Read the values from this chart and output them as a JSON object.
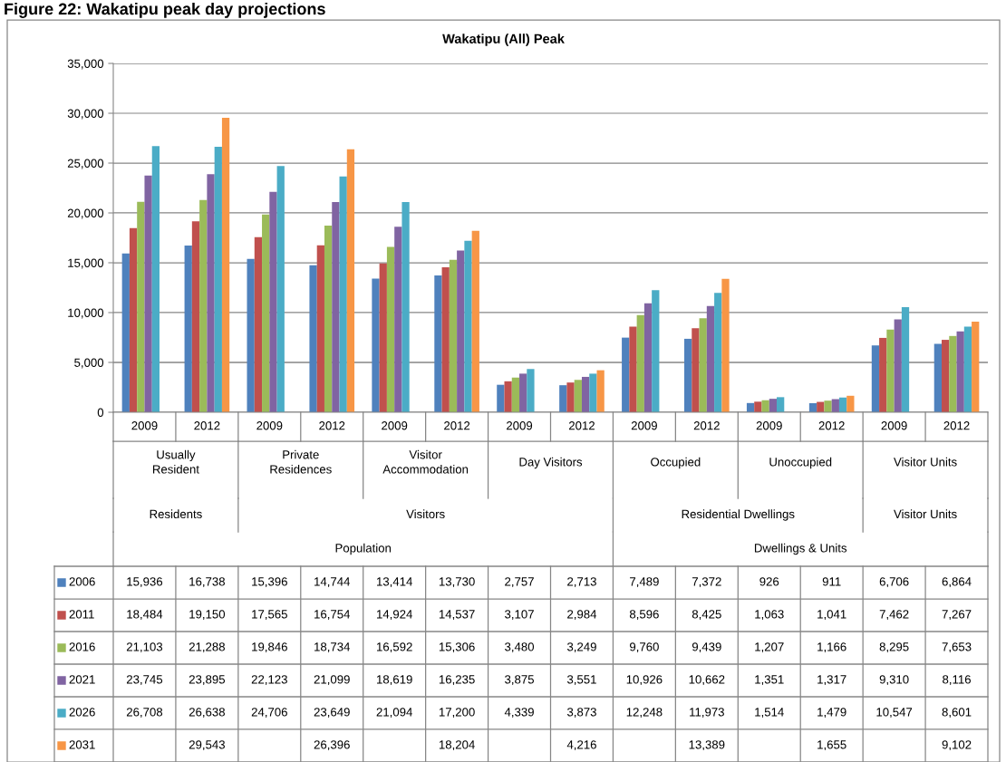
{
  "chart_data": {
    "type": "bar",
    "title": "Wakatipu (All) Peak",
    "categories": [
      "2009",
      "2012",
      "2009",
      "2012",
      "2009",
      "2012",
      "2009",
      "2012",
      "2009",
      "2012",
      "2009",
      "2012",
      "2009",
      "2012"
    ],
    "series": [
      {
        "name": "2006",
        "color": "#4f81bd",
        "values": [
          15936,
          16738,
          15396,
          14744,
          13414,
          13730,
          2757,
          2713,
          7489,
          7372,
          926,
          911,
          6706,
          6864
        ],
        "value_labels": [
          "15,936",
          "16,738",
          "15,396",
          "14,744",
          "13,414",
          "13,730",
          "2,757",
          "2,713",
          "7,489",
          "7,372",
          "926",
          "911",
          "6,706",
          "6,864"
        ]
      },
      {
        "name": "2011",
        "color": "#c0504d",
        "values": [
          18484,
          19150,
          17565,
          16754,
          14924,
          14537,
          3107,
          2984,
          8596,
          8425,
          1063,
          1041,
          7462,
          7267
        ],
        "value_labels": [
          "18,484",
          "19,150",
          "17,565",
          "16,754",
          "14,924",
          "14,537",
          "3,107",
          "2,984",
          "8,596",
          "8,425",
          "1,063",
          "1,041",
          "7,462",
          "7,267"
        ]
      },
      {
        "name": "2016",
        "color": "#9bbb59",
        "values": [
          21103,
          21288,
          19846,
          18734,
          16592,
          15306,
          3480,
          3249,
          9760,
          9439,
          1207,
          1166,
          8295,
          7653
        ],
        "value_labels": [
          "21,103",
          "21,288",
          "19,846",
          "18,734",
          "16,592",
          "15,306",
          "3,480",
          "3,249",
          "9,760",
          "9,439",
          "1,207",
          "1,166",
          "8,295",
          "7,653"
        ]
      },
      {
        "name": "2021",
        "color": "#8064a2",
        "values": [
          23745,
          23895,
          22123,
          21099,
          18619,
          16235,
          3875,
          3551,
          10926,
          10662,
          1351,
          1317,
          9310,
          8116
        ],
        "value_labels": [
          "23,745",
          "23,895",
          "22,123",
          "21,099",
          "18,619",
          "16,235",
          "3,875",
          "3,551",
          "10,926",
          "10,662",
          "1,351",
          "1,317",
          "9,310",
          "8,116"
        ]
      },
      {
        "name": "2026",
        "color": "#4bacc6",
        "values": [
          26708,
          26638,
          24706,
          23649,
          21094,
          17200,
          4339,
          3873,
          12248,
          11973,
          1514,
          1479,
          10547,
          8601
        ],
        "value_labels": [
          "26,708",
          "26,638",
          "24,706",
          "23,649",
          "21,094",
          "17,200",
          "4,339",
          "3,873",
          "12,248",
          "11,973",
          "1,514",
          "1,479",
          "10,547",
          "8,601"
        ]
      },
      {
        "name": "2031",
        "color": "#f79646",
        "values": [
          null,
          29543,
          null,
          26396,
          null,
          18204,
          null,
          4216,
          null,
          13389,
          null,
          1655,
          null,
          9102
        ],
        "value_labels": [
          null,
          "29,543",
          null,
          "26,396",
          null,
          "18,204",
          null,
          "4,216",
          null,
          "13,389",
          null,
          "1,655",
          null,
          "9,102"
        ]
      }
    ],
    "ylim": [
      0,
      35000
    ],
    "yticks": [
      0,
      {
        "value": 5000,
        "label": "5,000"
      },
      {
        "value": 10000,
        "label": "10,000"
      },
      {
        "value": 15000,
        "label": "15,000"
      },
      {
        "value": 20000,
        "label": "20,000"
      },
      {
        "value": 25000,
        "label": "25,000"
      },
      {
        "value": 30000,
        "label": "30,000"
      },
      {
        "value": 35000,
        "label": "35,000"
      }
    ],
    "grid": "y",
    "legend": "bottom",
    "annotations": [
      "Figure 22: Wakatipu peak day projections",
      "Usually Resident",
      "Private Residences",
      "Visitor Accommodation",
      "Day Visitors",
      "Occupied",
      "Unoccupied",
      "Visitor Units",
      "Residents",
      "Visitors",
      "Residential Dwellings",
      "Visitor Units",
      "Population",
      "Dwellings & Units"
    ]
  }
}
